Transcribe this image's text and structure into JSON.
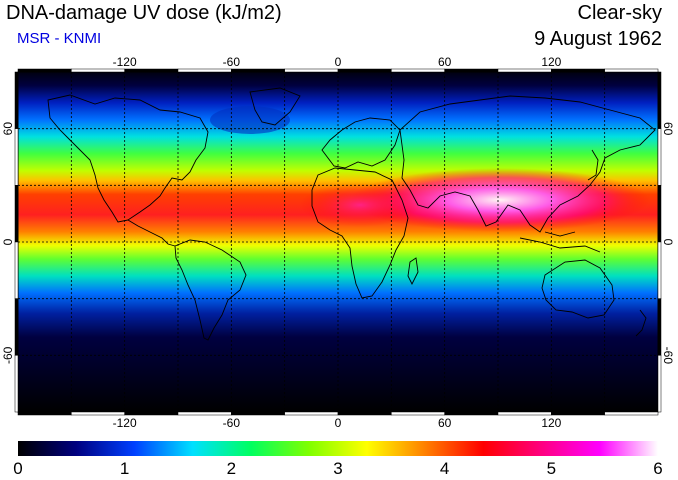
{
  "header": {
    "title": "DNA-damage UV dose (kJ/m2)",
    "subtitle": "MSR - KNMI",
    "sky_condition": "Clear-sky",
    "date": "9 August 1962"
  },
  "map": {
    "projection": "equirectangular",
    "lon_range": [
      -180,
      180
    ],
    "lat_range": [
      -90,
      90
    ],
    "lon_ticks": [
      -120,
      -60,
      0,
      60,
      120
    ],
    "lon_tick_labels": [
      "-120",
      "-60",
      "0",
      "60",
      "120"
    ],
    "lat_ticks": [
      -60,
      0,
      60
    ],
    "lat_tick_labels": [
      "-60",
      "0",
      "60"
    ],
    "gridline_step_degrees": 30,
    "gridlines": "dotted",
    "coastlines": true
  },
  "colorbar": {
    "min": 0,
    "max": 6,
    "tick_values": [
      0,
      1,
      2,
      3,
      4,
      5,
      6
    ],
    "tick_labels": [
      "0",
      "1",
      "2",
      "3",
      "4",
      "5",
      "6"
    ],
    "color_stops": [
      "#000000",
      "#000080",
      "#0040ff",
      "#00e0ff",
      "#00ff60",
      "#80ff00",
      "#ffff00",
      "#ff8000",
      "#ff0000",
      "#ff0080",
      "#ff00ff",
      "#ffffff"
    ]
  }
}
